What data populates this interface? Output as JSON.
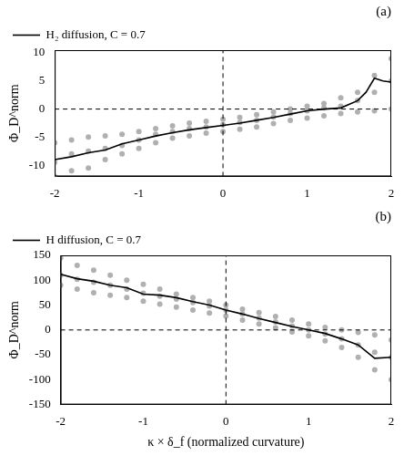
{
  "chart_data": [
    {
      "type": "scatter",
      "annotation": "(a)",
      "y_label": "Φ_D^norm",
      "xlim": [
        -2,
        2
      ],
      "xticks": [
        -2,
        -1,
        0,
        1,
        2
      ],
      "ylim": [
        -12,
        10.5
      ],
      "yticks": [
        -10,
        -5,
        0,
        5,
        10
      ],
      "grid": false,
      "legend": "upper left",
      "series": [
        {
          "type": "scatter",
          "color": "#b0b0b0",
          "marker": "circle",
          "x": [
            -2,
            -1.8,
            -1.6,
            -1.4,
            -1.2,
            -1,
            -0.8,
            -0.6,
            -0.4,
            -0.2,
            0,
            0.2,
            0.4,
            0.6,
            0.8,
            1,
            1.2,
            1.4,
            1.6,
            1.8,
            2,
            -2,
            -1.8,
            -1.6,
            -1.4,
            -1.2,
            -1,
            -0.8,
            -0.6,
            -0.4,
            -0.2,
            0,
            0.2,
            0.4,
            0.6,
            0.8,
            1,
            1.2,
            1.4,
            1.6,
            1.8,
            2,
            -2,
            -1.8,
            -1.6,
            -1.4,
            -1.2,
            -1,
            -0.8,
            -0.6,
            -0.4,
            -0.2,
            0,
            0.2,
            0.4,
            0.6,
            0.8,
            1,
            1.2,
            1.4,
            1.6,
            1.8,
            2
          ],
          "values": [
            -6,
            -5.5,
            -5,
            -4.8,
            -4.5,
            -4,
            -3.5,
            -3,
            -2.5,
            -2.2,
            -1.8,
            -1.5,
            -1,
            -0.5,
            0,
            0.5,
            1,
            2,
            3,
            6,
            9,
            -9.5,
            -8,
            -7.5,
            -7,
            -6.5,
            -5.5,
            -4.5,
            -4,
            -3.5,
            -3.2,
            -2.8,
            -2.4,
            -2,
            -1.4,
            -0.8,
            -0.3,
            0.2,
            0.5,
            1.5,
            3,
            5,
            -12,
            -11,
            -10.5,
            -9,
            -8,
            -7,
            -6,
            -5.2,
            -4.8,
            -4.3,
            -4,
            -3.6,
            -3.2,
            -2.6,
            -2,
            -1.6,
            -1.2,
            -0.8,
            -0.5,
            -0.3,
            0
          ]
        },
        {
          "type": "line",
          "color": "#000000",
          "line_style": "dashed",
          "x": [
            -2,
            2
          ],
          "values": [
            0,
            0
          ]
        },
        {
          "type": "line",
          "color": "#000000",
          "line_style": "dashed",
          "x": [
            0,
            0
          ],
          "values": [
            -12,
            10.5
          ]
        },
        {
          "name": "H₂ diffusion, C = 0.7",
          "type": "line",
          "color": "#000000",
          "line_style": "solid",
          "x": [
            -2,
            -1.8,
            -1.6,
            -1.4,
            -1.2,
            -1,
            -0.8,
            -0.6,
            -0.4,
            -0.2,
            0,
            0.2,
            0.4,
            0.6,
            0.8,
            1,
            1.2,
            1.4,
            1.6,
            1.7,
            1.8,
            1.9,
            2
          ],
          "values": [
            -9,
            -8.5,
            -7.8,
            -7.3,
            -6.2,
            -5.5,
            -4.8,
            -4.2,
            -3.7,
            -3.3,
            -2.9,
            -2.5,
            -2,
            -1.5,
            -0.9,
            -0.3,
            0,
            0.2,
            1.5,
            3,
            5.5,
            5,
            4.8
          ]
        }
      ]
    },
    {
      "type": "scatter",
      "annotation": "(b)",
      "x_label": "κ × δ_f (normalized curvature)",
      "y_label": "Φ_D^norm",
      "xlim": [
        -2,
        2
      ],
      "xticks": [
        -2,
        -1,
        0,
        1,
        2
      ],
      "ylim": [
        -150,
        150
      ],
      "yticks": [
        -150,
        -100,
        -50,
        0,
        50,
        100,
        150
      ],
      "grid": false,
      "legend": "upper left",
      "series": [
        {
          "type": "scatter",
          "color": "#b0b0b0",
          "marker": "circle",
          "x": [
            -2,
            -1.8,
            -1.6,
            -1.4,
            -1.2,
            -1,
            -0.8,
            -0.6,
            -0.4,
            -0.2,
            0,
            0.2,
            0.4,
            0.6,
            0.8,
            1,
            1.2,
            1.4,
            1.6,
            1.8,
            2,
            -2,
            -1.8,
            -1.6,
            -1.4,
            -1.2,
            -1,
            -0.8,
            -0.6,
            -0.4,
            -0.2,
            0,
            0.2,
            0.4,
            0.6,
            0.8,
            1,
            1.2,
            1.4,
            1.6,
            1.8,
            2,
            -2,
            -1.8,
            -1.6,
            -1.4,
            -1.2,
            -1,
            -0.8,
            -0.6,
            -0.4,
            -0.2,
            0,
            0.2,
            0.4,
            0.6,
            0.8,
            1,
            1.2,
            1.4,
            1.6,
            1.8,
            2
          ],
          "values": [
            145,
            130,
            120,
            110,
            100,
            92,
            82,
            72,
            65,
            58,
            50,
            42,
            35,
            27,
            20,
            12,
            5,
            0,
            -5,
            -10,
            -20,
            110,
            102,
            96,
            90,
            82,
            74,
            68,
            62,
            55,
            48,
            40,
            32,
            24,
            16,
            8,
            0,
            -8,
            -18,
            -30,
            -45,
            -55,
            90,
            82,
            75,
            70,
            65,
            58,
            52,
            46,
            40,
            34,
            28,
            20,
            12,
            4,
            -4,
            -12,
            -22,
            -35,
            -55,
            -80,
            -100
          ]
        },
        {
          "type": "line",
          "color": "#000000",
          "line_style": "dashed",
          "x": [
            -2,
            2
          ],
          "values": [
            0,
            0
          ]
        },
        {
          "type": "line",
          "color": "#000000",
          "line_style": "dashed",
          "x": [
            0,
            0
          ],
          "values": [
            -150,
            150
          ]
        },
        {
          "name": "H diffusion, C = 0.7",
          "type": "line",
          "color": "#000000",
          "line_style": "solid",
          "x": [
            -2,
            -1.8,
            -1.6,
            -1.4,
            -1.2,
            -1,
            -0.8,
            -0.6,
            -0.4,
            -0.2,
            0,
            0.2,
            0.4,
            0.6,
            0.8,
            1,
            1.2,
            1.4,
            1.6,
            1.8,
            2
          ],
          "values": [
            112,
            103,
            98,
            90,
            85,
            72,
            70,
            65,
            57,
            50,
            40,
            32,
            23,
            15,
            7,
            0,
            -7,
            -18,
            -30,
            -57,
            -55
          ]
        }
      ]
    }
  ]
}
